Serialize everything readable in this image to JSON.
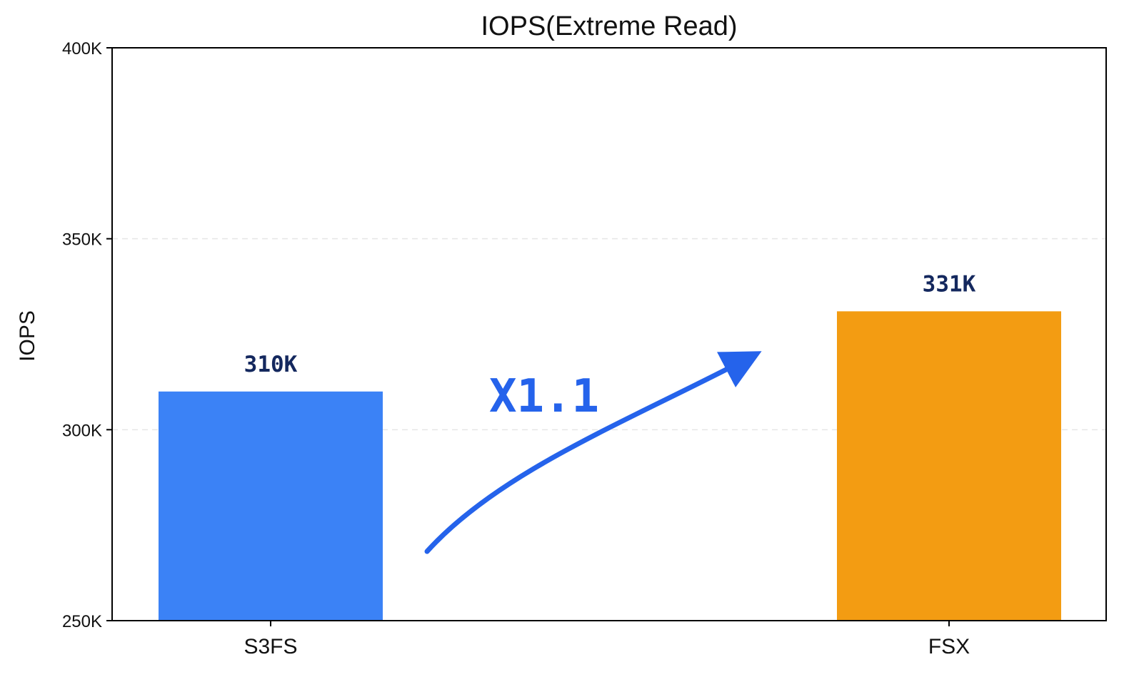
{
  "chart_data": {
    "type": "bar",
    "title": "IOPS(Extreme Read)",
    "ylabel": "IOPS",
    "xlabel": "",
    "categories": [
      "S3FS",
      "FSX"
    ],
    "values": [
      310000,
      331000
    ],
    "value_labels": [
      "310K",
      "331K"
    ],
    "colors": [
      "#3b82f6",
      "#f39c12"
    ],
    "ylim": [
      250000,
      400000
    ],
    "yticks": [
      250000,
      300000,
      350000,
      400000
    ],
    "ytick_labels": [
      "250K",
      "300K",
      "350K",
      "400K"
    ],
    "grid": "horizontal dashed",
    "annotation": {
      "text": "X1.1",
      "color": "#2563eb",
      "arrow": "curved arrow from S3FS bar toward FSX bar"
    }
  }
}
